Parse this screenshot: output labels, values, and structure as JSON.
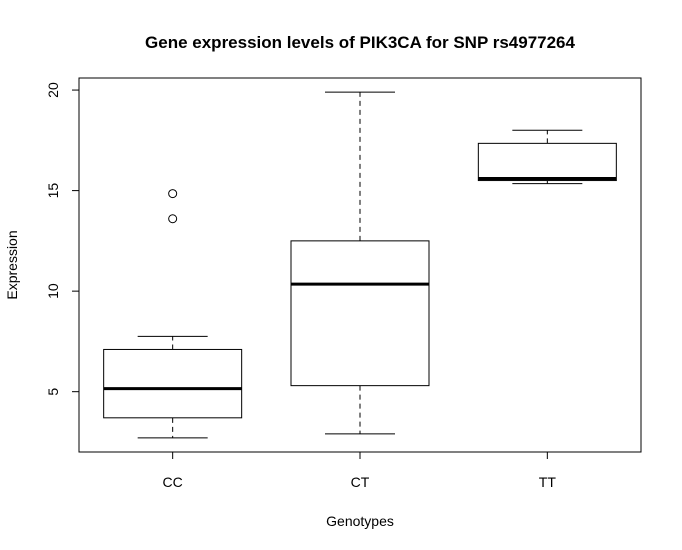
{
  "chart_data": {
    "type": "boxplot",
    "title": "Gene expression levels of PIK3CA for SNP rs4977264",
    "xlabel": "Genotypes",
    "ylabel": "Expression",
    "ylim": [
      2.0,
      20.6
    ],
    "yticks": [
      5,
      10,
      15,
      20
    ],
    "grid": false,
    "categories": [
      "CC",
      "CT",
      "TT"
    ],
    "boxes": [
      {
        "category": "CC",
        "whisker_low": 2.7,
        "q1": 3.7,
        "median": 5.15,
        "q3": 7.1,
        "whisker_high": 7.75,
        "outliers": [
          13.6,
          14.85
        ]
      },
      {
        "category": "CT",
        "whisker_low": 2.9,
        "q1": 5.3,
        "median": 10.35,
        "q3": 12.5,
        "whisker_high": 19.9,
        "outliers": []
      },
      {
        "category": "TT",
        "whisker_low": 15.35,
        "q1": 15.5,
        "median": 15.6,
        "q3": 17.35,
        "whisker_high": 18.0,
        "outliers": []
      }
    ]
  }
}
